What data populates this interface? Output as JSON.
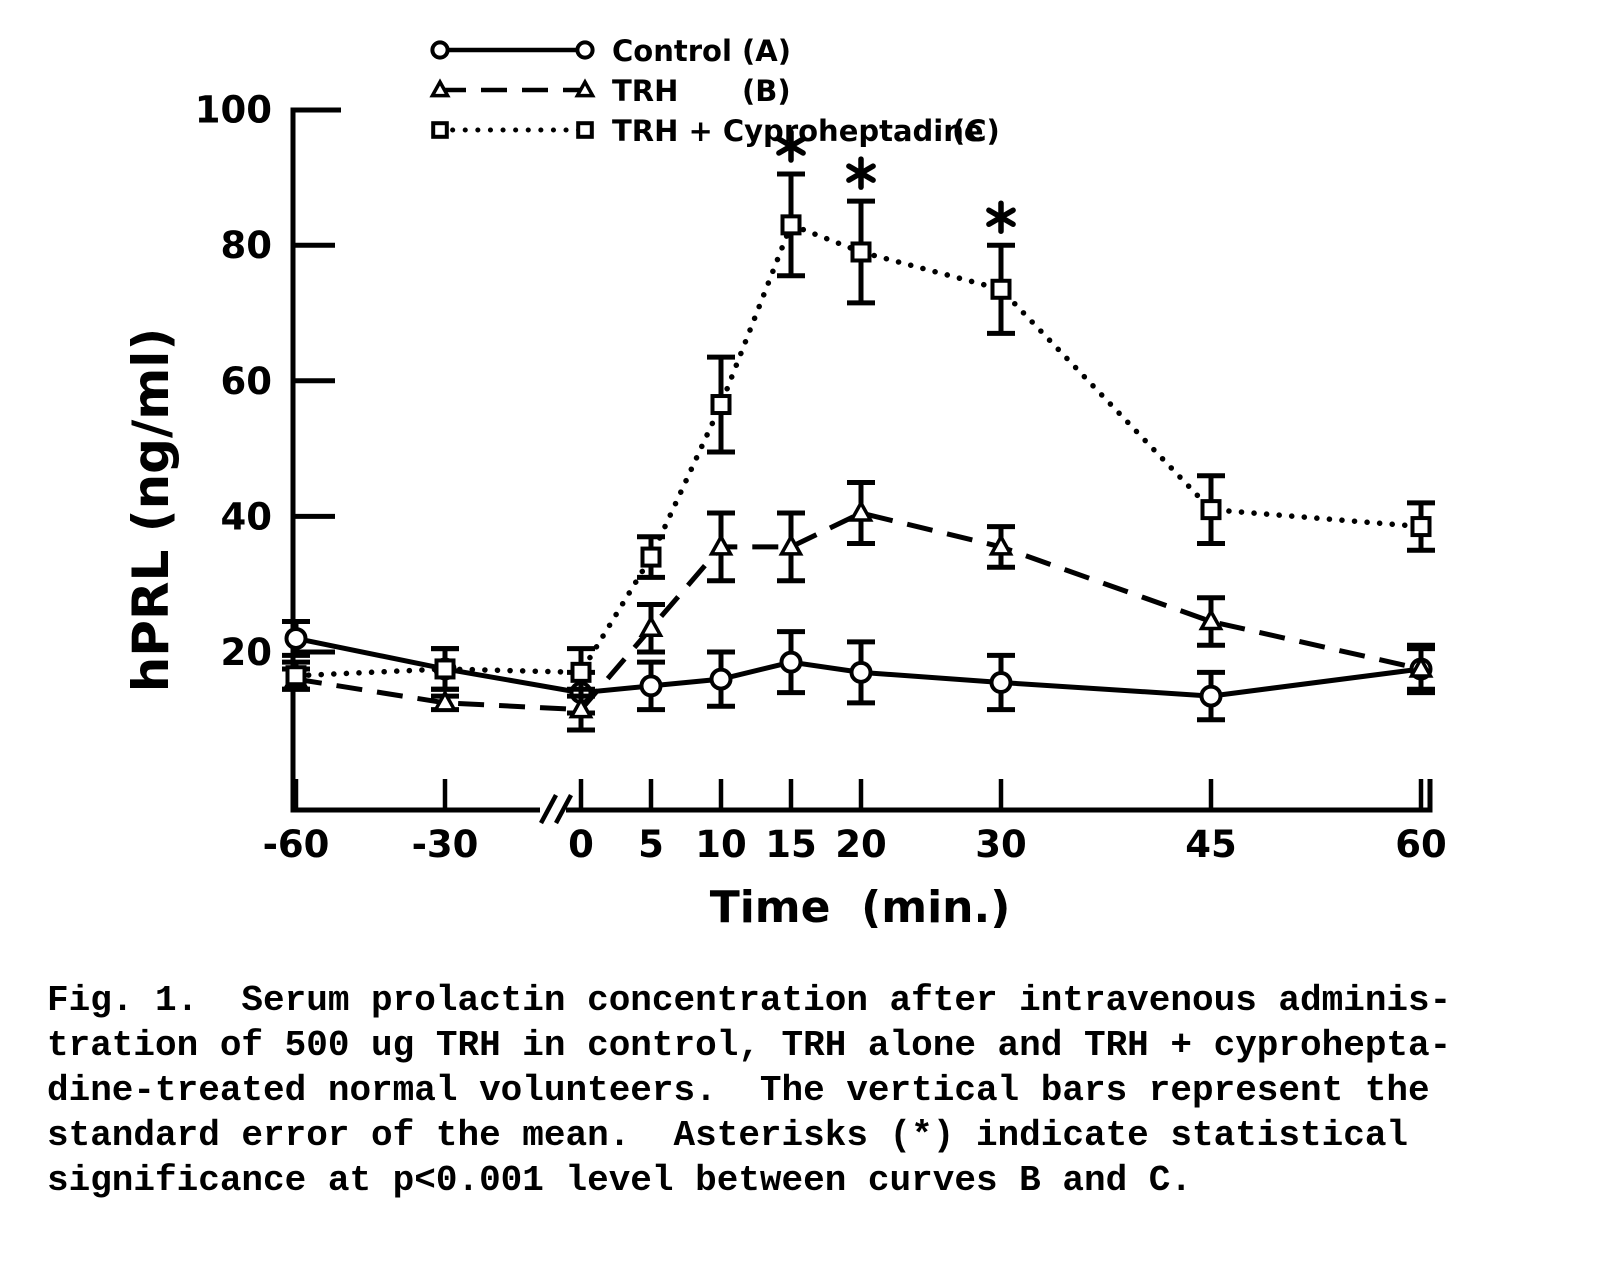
{
  "figure": {
    "caption_lines": [
      "Fig. 1.  Serum prolactin concentration after intravenous adminis-",
      "tration of 500 ug TRH in control, TRH alone and TRH + cyprohepta-",
      "dine-treated normal volunteers.  The vertical bars represent the",
      "standard error of the mean.  Asterisks (*) indicate statistical",
      "significance at p<0.001 level between curves B and C."
    ]
  },
  "chart_data": {
    "type": "line",
    "title": "",
    "xlabel": "Time  (min.)",
    "ylabel": "hPRL (ng/ml)",
    "x": [
      -60,
      -30,
      0,
      5,
      10,
      15,
      20,
      30,
      45,
      60
    ],
    "x_tick_labels": [
      "-60",
      "-30",
      "0",
      "5",
      "10",
      "15",
      "20",
      "30",
      "45",
      "60"
    ],
    "y_ticks": [
      20,
      40,
      60,
      80,
      100
    ],
    "ylim": [
      0,
      103
    ],
    "xaxis_break_between": [
      -30,
      0
    ],
    "grid": false,
    "legend_position": "top-inside",
    "colors": {
      "foreground": "#000000",
      "background": "#ffffff"
    },
    "significance_marker": "*",
    "significance_note": "p<0.001 between curves B and C",
    "series": [
      {
        "name": "Control",
        "curve_letter": "(A)",
        "marker": "circle",
        "line_style": "solid",
        "values": [
          22,
          17.5,
          14,
          15,
          16,
          18.5,
          17,
          15.5,
          13.5,
          17.5
        ],
        "se": [
          2.5,
          3,
          3,
          3.5,
          4,
          4.5,
          4.5,
          4,
          3.5,
          3.5
        ]
      },
      {
        "name": "TRH",
        "curve_letter": "(B)",
        "marker": "triangle",
        "line_style": "dashed",
        "values": [
          16,
          12.5,
          11.5,
          23.5,
          35.5,
          35.5,
          40.5,
          35.5,
          24.5,
          17.5
        ],
        "se": [
          1.5,
          1,
          3,
          3.5,
          5,
          5,
          4.5,
          3,
          3.5,
          3
        ]
      },
      {
        "name": "TRH + Cyproheptadine",
        "curve_letter": "(C)",
        "marker": "square",
        "line_style": "dotted",
        "values": [
          16.5,
          17.5,
          17,
          34,
          56.5,
          83,
          79,
          73.5,
          41,
          38.5
        ],
        "se": [
          2,
          3,
          3.5,
          3,
          7,
          7.5,
          7.5,
          6.5,
          5,
          3.5
        ],
        "significance_times": [
          15,
          20,
          30
        ]
      }
    ]
  }
}
